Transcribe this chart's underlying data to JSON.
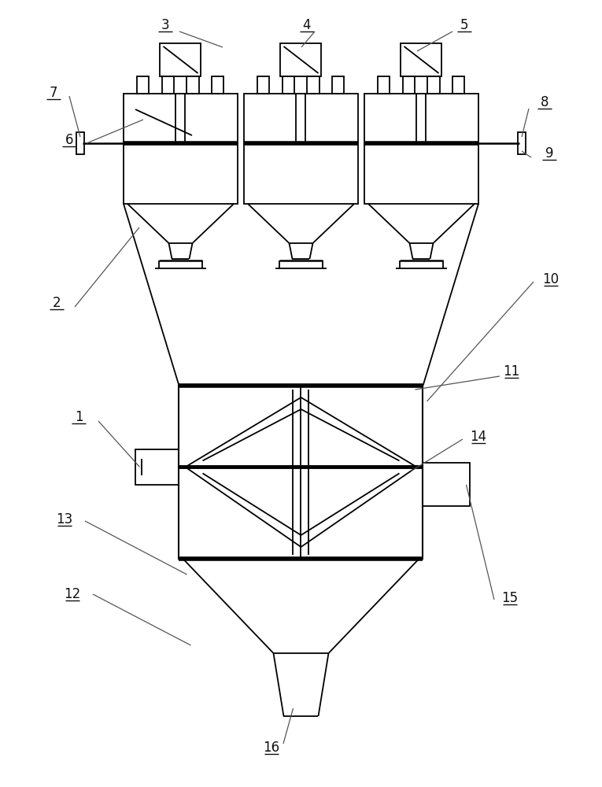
{
  "bg_color": "#ffffff",
  "line_color": "#000000",
  "lw": 1.3,
  "tlw": 4.0,
  "label_fs": 12,
  "label_color": "#111111"
}
